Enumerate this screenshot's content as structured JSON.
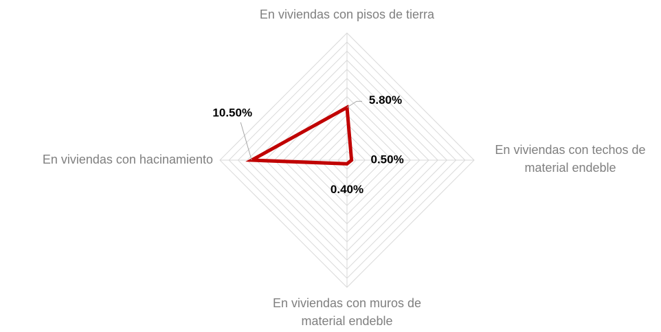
{
  "chart_data": {
    "type": "radar",
    "categories": [
      "En viviendas con pisos de tierra",
      "En viviendas con techos de material endeble",
      "En viviendas con muros de material endeble",
      "En viviendas con hacinamiento"
    ],
    "series": [
      {
        "color": "#c00000",
        "values": [
          5.8,
          0.5,
          0.4,
          10.5
        ],
        "value_labels": [
          "5.80%",
          "0.50%",
          "0.40%",
          "10.50%"
        ]
      }
    ],
    "ylim": [
      0,
      14
    ],
    "yticks": [
      0,
      1,
      2,
      3,
      4,
      5,
      6,
      7,
      8,
      9,
      10,
      11,
      12,
      13,
      14
    ],
    "grid": true
  }
}
